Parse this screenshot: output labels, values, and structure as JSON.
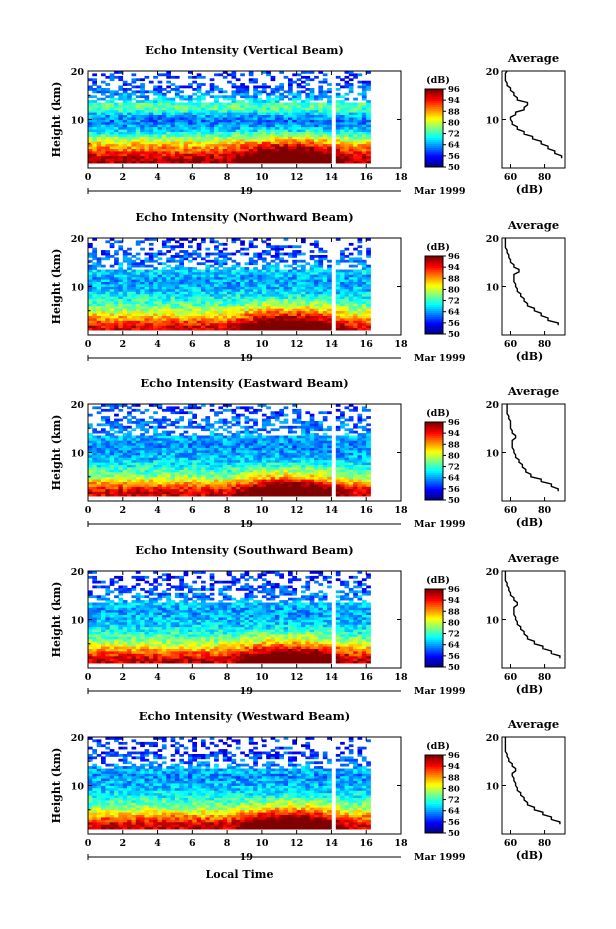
{
  "chart_data": [
    {
      "type": "heatmap",
      "title": "Echo Intensity (Vertical Beam)",
      "ylabel": "Height (km)",
      "xlabel": "",
      "date_label": "19",
      "month_label": "Mar 1999",
      "x_ticks": [
        "0",
        "2",
        "4",
        "6",
        "8",
        "10",
        "12",
        "14",
        "16",
        "18"
      ],
      "xlim": [
        0,
        18
      ],
      "y_ticks": [
        "10",
        "20"
      ],
      "ylim": [
        0,
        20
      ],
      "colorbar": {
        "label": "(dB)",
        "ticks": [
          "50",
          "56",
          "64",
          "72",
          "80",
          "88",
          "94",
          "96"
        ],
        "range": [
          50,
          100
        ]
      },
      "profile": {
        "title": "Average",
        "xlabel": "(dB)",
        "x_ticks": [
          "60",
          "80"
        ],
        "xlim": [
          55,
          92
        ],
        "heights_km": [
          2,
          3,
          4,
          5,
          6,
          7,
          8,
          9,
          10,
          11,
          12,
          13,
          14,
          15,
          16,
          17,
          18,
          19,
          20
        ],
        "values_db": [
          90,
          86,
          82,
          78,
          73,
          68,
          64,
          61,
          60,
          63,
          68,
          70,
          64,
          62,
          60,
          58,
          57,
          57,
          58
        ]
      }
    },
    {
      "type": "heatmap",
      "title": "Echo Intensity (Northward Beam)",
      "ylabel": "Height (km)",
      "xlabel": "",
      "date_label": "19",
      "month_label": "Mar 1999",
      "x_ticks": [
        "0",
        "2",
        "4",
        "6",
        "8",
        "10",
        "12",
        "14",
        "16",
        "18"
      ],
      "xlim": [
        0,
        18
      ],
      "y_ticks": [
        "10",
        "20"
      ],
      "ylim": [
        0,
        20
      ],
      "colorbar": {
        "label": "(dB)",
        "ticks": [
          "50",
          "56",
          "64",
          "72",
          "80",
          "88",
          "94",
          "96"
        ],
        "range": [
          50,
          100
        ]
      },
      "profile": {
        "title": "Average",
        "xlabel": "(dB)",
        "x_ticks": [
          "60",
          "80"
        ],
        "xlim": [
          55,
          92
        ],
        "heights_km": [
          2,
          3,
          4,
          5,
          6,
          7,
          8,
          9,
          10,
          11,
          12,
          13,
          14,
          15,
          16,
          17,
          18,
          19,
          20
        ],
        "values_db": [
          88,
          82,
          78,
          74,
          70,
          68,
          66,
          64,
          63,
          62,
          62,
          65,
          62,
          60,
          59,
          58,
          57,
          57,
          57
        ]
      }
    },
    {
      "type": "heatmap",
      "title": "Echo Intensity (Eastward Beam)",
      "ylabel": "Height (km)",
      "xlabel": "",
      "date_label": "19",
      "month_label": "Mar 1999",
      "x_ticks": [
        "0",
        "2",
        "4",
        "6",
        "8",
        "10",
        "12",
        "14",
        "16",
        "18"
      ],
      "xlim": [
        0,
        18
      ],
      "y_ticks": [
        "10",
        "20"
      ],
      "ylim": [
        0,
        20
      ],
      "colorbar": {
        "label": "(dB)",
        "ticks": [
          "50",
          "56",
          "64",
          "72",
          "80",
          "88",
          "94",
          "96"
        ],
        "range": [
          50,
          100
        ]
      },
      "profile": {
        "title": "Average",
        "xlabel": "(dB)",
        "x_ticks": [
          "60",
          "80"
        ],
        "xlim": [
          55,
          92
        ],
        "heights_km": [
          2,
          3,
          4,
          5,
          6,
          7,
          8,
          9,
          10,
          11,
          12,
          13,
          14,
          15,
          16,
          17,
          18,
          19,
          20
        ],
        "values_db": [
          88,
          84,
          78,
          72,
          69,
          67,
          65,
          63,
          62,
          61,
          61,
          63,
          61,
          60,
          60,
          59,
          58,
          58,
          58
        ]
      }
    },
    {
      "type": "heatmap",
      "title": "Echo Intensity (Southward Beam)",
      "ylabel": "Height (km)",
      "xlabel": "",
      "date_label": "19",
      "month_label": "Mar 1999",
      "x_ticks": [
        "0",
        "2",
        "4",
        "6",
        "8",
        "10",
        "12",
        "14",
        "16",
        "18"
      ],
      "xlim": [
        0,
        18
      ],
      "y_ticks": [
        "10",
        "20"
      ],
      "ylim": [
        0,
        20
      ],
      "colorbar": {
        "label": "(dB)",
        "ticks": [
          "50",
          "56",
          "64",
          "72",
          "80",
          "88",
          "94",
          "96"
        ],
        "range": [
          50,
          100
        ]
      },
      "profile": {
        "title": "Average",
        "xlabel": "(dB)",
        "x_ticks": [
          "60",
          "80"
        ],
        "xlim": [
          55,
          92
        ],
        "heights_km": [
          2,
          3,
          4,
          5,
          6,
          7,
          8,
          9,
          10,
          11,
          12,
          13,
          14,
          15,
          16,
          17,
          18,
          19,
          20
        ],
        "values_db": [
          89,
          84,
          79,
          74,
          70,
          68,
          66,
          64,
          63,
          62,
          62,
          64,
          62,
          60,
          59,
          58,
          57,
          57,
          57
        ]
      }
    },
    {
      "type": "heatmap",
      "title": "Echo Intensity (Westward Beam)",
      "ylabel": "Height (km)",
      "xlabel": "Local Time",
      "date_label": "19",
      "month_label": "Mar 1999",
      "x_ticks": [
        "0",
        "2",
        "4",
        "6",
        "8",
        "10",
        "12",
        "14",
        "16",
        "18"
      ],
      "xlim": [
        0,
        18
      ],
      "y_ticks": [
        "10",
        "20"
      ],
      "ylim": [
        0,
        20
      ],
      "colorbar": {
        "label": "(dB)",
        "ticks": [
          "50",
          "56",
          "64",
          "72",
          "80",
          "88",
          "94",
          "96"
        ],
        "range": [
          50,
          100
        ]
      },
      "profile": {
        "title": "Average",
        "xlabel": "(dB)",
        "x_ticks": [
          "60",
          "80"
        ],
        "xlim": [
          55,
          92
        ],
        "heights_km": [
          2,
          3,
          4,
          5,
          6,
          7,
          8,
          9,
          10,
          11,
          12,
          13,
          14,
          15,
          16,
          17,
          18,
          19,
          20
        ],
        "values_db": [
          89,
          84,
          79,
          74,
          70,
          68,
          66,
          64,
          63,
          62,
          61,
          63,
          61,
          59,
          58,
          57,
          57,
          57,
          57
        ]
      }
    }
  ]
}
